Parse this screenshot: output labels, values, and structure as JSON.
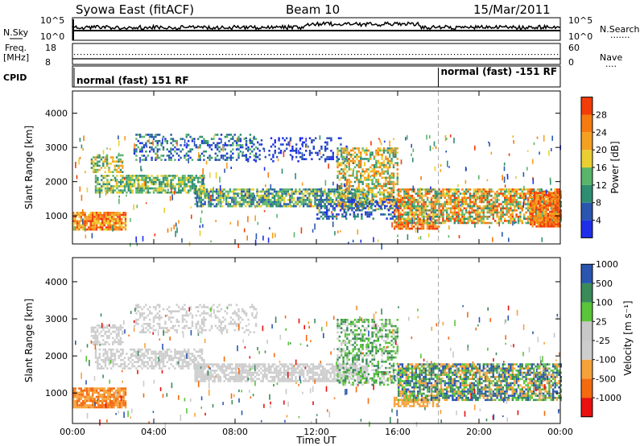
{
  "header": {
    "station": "Syowa East (fitACF)",
    "beam": "Beam 10",
    "date": "15/Mar/2011"
  },
  "noise_panel": {
    "left_label": "N.Sky",
    "right_label": "N.Search",
    "right_key": "·······",
    "left_ticks": [
      "10^5",
      "10^0"
    ],
    "right_ticks": [
      "10^5",
      "10^0"
    ]
  },
  "freq_panel": {
    "left_label_1": "Freq.",
    "left_label_2": "[MHz]",
    "right_label": "Nave",
    "right_key": "····",
    "left_ticks": [
      "18",
      "8"
    ],
    "right_ticks": [
      "60",
      "0"
    ]
  },
  "cpid": {
    "label": "CPID",
    "mode1": "normal (fast) 151 RF",
    "mode2": "normal (fast) -151 RF",
    "mode2_start_hour": 18
  },
  "colors": {
    "power": [
      "#1f2fe8",
      "#2a56b0",
      "#2f8e72",
      "#5ab56a",
      "#e9cf31",
      "#f4a020",
      "#f57b10",
      "#f23c0a"
    ],
    "velocity": [
      "#e81010",
      "#f46a10",
      "#f5a23a",
      "#cdcdcd",
      "#c8c8c8",
      "#5ac43a",
      "#3a8a5a",
      "#2a56b0"
    ]
  },
  "chart_data": [
    {
      "type": "heatmap",
      "name": "power",
      "ylabel": "Slant Range [km]",
      "yticks": [
        1000,
        2000,
        3000,
        4000
      ],
      "ylim": [
        180,
        4650
      ],
      "xlim": [
        0,
        24
      ],
      "colorbar_label": "Power [dB]",
      "colorbar_ticks": [
        "4",
        "8",
        "12",
        "16",
        "20",
        "24",
        "28"
      ],
      "colorbar_range": [
        0,
        32
      ],
      "regions": [
        {
          "x0": 0.0,
          "x1": 2.6,
          "y0": 620,
          "y1": 1120,
          "density": 0.9,
          "levels": [
            4,
            5,
            6,
            7
          ]
        },
        {
          "x0": 0.9,
          "x1": 2.5,
          "y0": 2300,
          "y1": 2800,
          "density": 0.65,
          "levels": [
            2,
            3,
            4,
            5
          ]
        },
        {
          "x0": 1.1,
          "x1": 6.5,
          "y0": 1650,
          "y1": 2200,
          "density": 0.7,
          "levels": [
            2,
            3,
            4
          ]
        },
        {
          "x0": 3.0,
          "x1": 9.0,
          "y0": 2650,
          "y1": 3400,
          "density": 0.35,
          "levels": [
            0,
            1,
            2,
            3
          ]
        },
        {
          "x0": 6.0,
          "x1": 14.5,
          "y0": 1300,
          "y1": 1800,
          "density": 0.75,
          "levels": [
            1,
            2,
            3,
            4
          ]
        },
        {
          "x0": 8.5,
          "x1": 13.5,
          "y0": 2600,
          "y1": 3300,
          "density": 0.25,
          "levels": [
            0,
            1
          ]
        },
        {
          "x0": 13.0,
          "x1": 16.0,
          "y0": 1200,
          "y1": 3000,
          "density": 0.55,
          "levels": [
            2,
            3,
            4,
            5,
            6
          ]
        },
        {
          "x0": 12.0,
          "x1": 16.0,
          "y0": 900,
          "y1": 1500,
          "density": 0.4,
          "levels": [
            0,
            1,
            2
          ]
        },
        {
          "x0": 15.8,
          "x1": 18.0,
          "y0": 650,
          "y1": 900,
          "density": 0.7,
          "levels": [
            5,
            6,
            7
          ]
        },
        {
          "x0": 16.0,
          "x1": 24.0,
          "y0": 800,
          "y1": 1800,
          "density": 0.75,
          "levels": [
            2,
            3,
            4,
            5,
            6,
            7
          ]
        },
        {
          "x0": 22.5,
          "x1": 24.0,
          "y0": 700,
          "y1": 1700,
          "density": 0.9,
          "levels": [
            5,
            6,
            7
          ]
        }
      ]
    },
    {
      "type": "heatmap",
      "name": "velocity",
      "ylabel": "Slant Range [km]",
      "yticks": [
        1000,
        2000,
        3000,
        4000
      ],
      "ylim": [
        180,
        4650
      ],
      "xlim": [
        0,
        24
      ],
      "colorbar_label": "Velocity [m s⁻¹]",
      "colorbar_ticks": [
        "-1000",
        "-500",
        "-100",
        "-25",
        "25",
        "100",
        "500",
        "1000"
      ],
      "regions": [
        {
          "x0": 0.0,
          "x1": 2.6,
          "y0": 600,
          "y1": 1150,
          "density": 0.85,
          "levels": [
            1,
            2
          ]
        },
        {
          "x0": 0.9,
          "x1": 2.5,
          "y0": 2300,
          "y1": 2850,
          "density": 0.6,
          "levels": [
            3
          ]
        },
        {
          "x0": 1.1,
          "x1": 6.5,
          "y0": 1650,
          "y1": 2200,
          "density": 0.6,
          "levels": [
            3
          ]
        },
        {
          "x0": 3.0,
          "x1": 9.0,
          "y0": 2650,
          "y1": 3400,
          "density": 0.3,
          "levels": [
            3
          ]
        },
        {
          "x0": 6.0,
          "x1": 14.5,
          "y0": 1300,
          "y1": 1800,
          "density": 0.75,
          "levels": [
            3
          ]
        },
        {
          "x0": 13.0,
          "x1": 16.0,
          "y0": 1200,
          "y1": 3000,
          "density": 0.5,
          "levels": [
            3,
            5,
            6
          ]
        },
        {
          "x0": 15.8,
          "x1": 18.0,
          "y0": 650,
          "y1": 900,
          "density": 0.7,
          "levels": [
            2
          ]
        },
        {
          "x0": 16.0,
          "x1": 24.0,
          "y0": 800,
          "y1": 1800,
          "density": 0.75,
          "levels": [
            5,
            6,
            7,
            2
          ]
        }
      ]
    }
  ],
  "time_axis": {
    "xlabel": "Time UT",
    "ticks": [
      "00:00",
      "04:00",
      "08:00",
      "12:00",
      "16:00",
      "20:00",
      "00:00"
    ],
    "tick_hours": [
      0,
      4,
      8,
      12,
      16,
      20,
      24
    ]
  }
}
